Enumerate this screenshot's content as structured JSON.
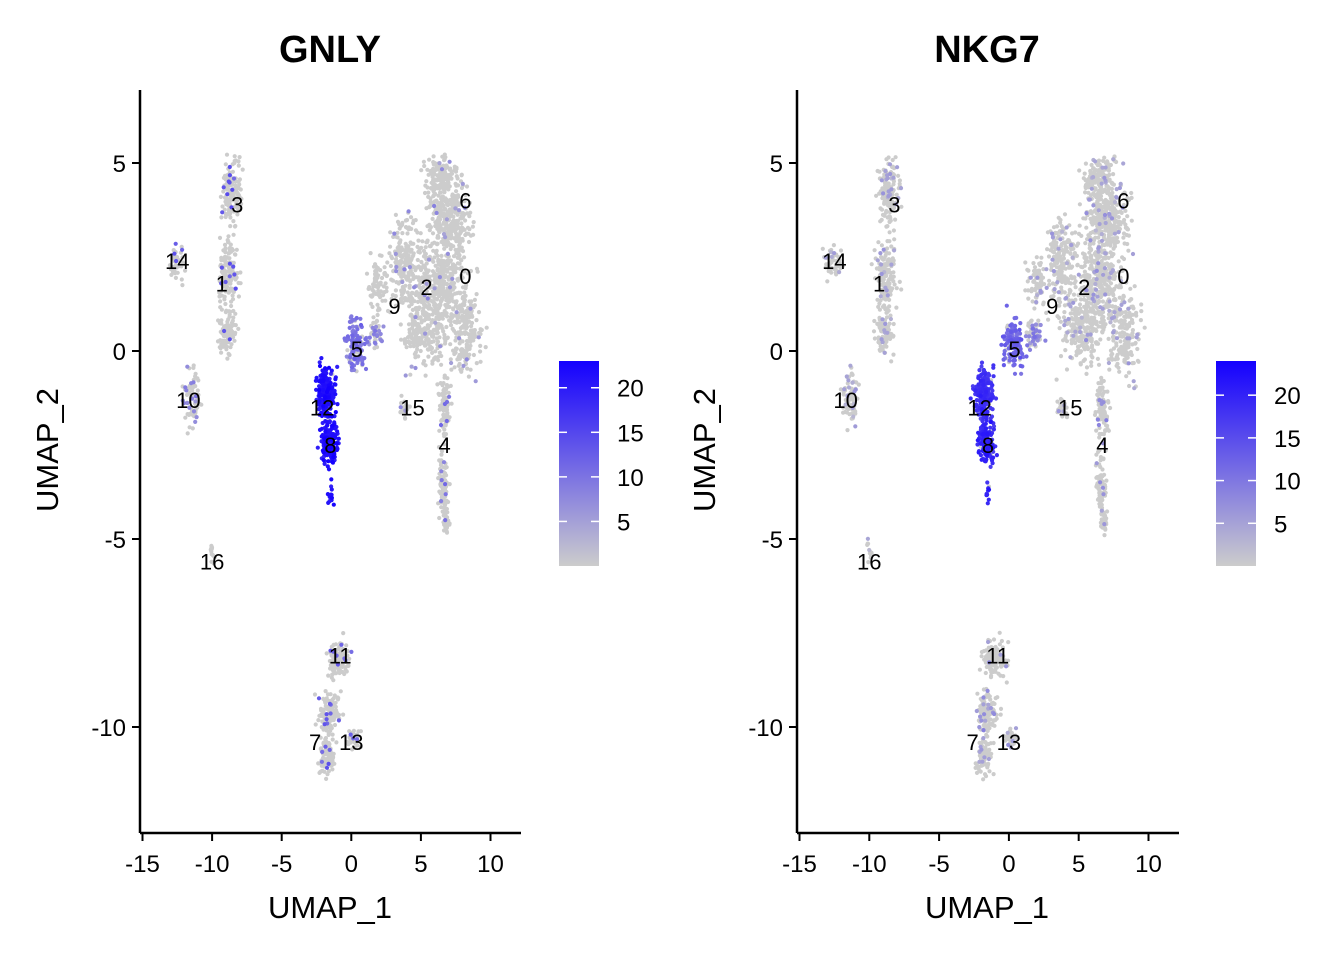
{
  "chart_data": [
    {
      "type": "scatter",
      "title": "GNLY",
      "xlabel": "UMAP_1",
      "ylabel": "UMAP_2",
      "xlim": [
        -15.5,
        12
      ],
      "ylim": [
        -13,
        6.8
      ],
      "xticks": [
        -15,
        -10,
        -5,
        0,
        5,
        10
      ],
      "yticks": [
        5,
        0,
        -5,
        -10
      ],
      "colorbar": {
        "ticks": [
          5,
          10,
          15,
          20
        ],
        "min": 0,
        "max": 23,
        "low_color": "#CCCCCC",
        "high_color": "#1400FF"
      },
      "clusters": [
        {
          "label": "0",
          "x": 8.2,
          "y": 2.0
        },
        {
          "label": "1",
          "x": -9.3,
          "y": 1.8
        },
        {
          "label": "2",
          "x": 5.4,
          "y": 1.7
        },
        {
          "label": "3",
          "x": -8.2,
          "y": 3.9
        },
        {
          "label": "4",
          "x": 6.7,
          "y": -2.5
        },
        {
          "label": "5",
          "x": 0.4,
          "y": 0.05
        },
        {
          "label": "6",
          "x": 8.2,
          "y": 4.0
        },
        {
          "label": "7",
          "x": -2.6,
          "y": -10.4
        },
        {
          "label": "8",
          "x": -1.5,
          "y": -2.5
        },
        {
          "label": "9",
          "x": 3.1,
          "y": 1.2
        },
        {
          "label": "10",
          "x": -11.7,
          "y": -1.3
        },
        {
          "label": "11",
          "x": -0.8,
          "y": -8.1
        },
        {
          "label": "12",
          "x": -2.1,
          "y": -1.5
        },
        {
          "label": "13",
          "x": 0.0,
          "y": -10.4
        },
        {
          "label": "14",
          "x": -12.5,
          "y": 2.4
        },
        {
          "label": "15",
          "x": 4.4,
          "y": -1.5
        },
        {
          "label": "16",
          "x": -10.0,
          "y": -5.6
        }
      ]
    },
    {
      "type": "scatter",
      "title": "NKG7",
      "xlabel": "UMAP_1",
      "ylabel": "UMAP_2",
      "xlim": [
        -15.5,
        12
      ],
      "ylim": [
        -13,
        6.8
      ],
      "xticks": [
        -15,
        -10,
        -5,
        0,
        5,
        10
      ],
      "yticks": [
        5,
        0,
        -5,
        -10
      ],
      "colorbar": {
        "ticks": [
          5,
          10,
          15,
          20
        ],
        "min": 0,
        "max": 24,
        "low_color": "#CCCCCC",
        "high_color": "#1400FF"
      },
      "clusters": [
        {
          "label": "0",
          "x": 8.2,
          "y": 2.0
        },
        {
          "label": "1",
          "x": -9.3,
          "y": 1.8
        },
        {
          "label": "2",
          "x": 5.4,
          "y": 1.7
        },
        {
          "label": "3",
          "x": -8.2,
          "y": 3.9
        },
        {
          "label": "4",
          "x": 6.7,
          "y": -2.5
        },
        {
          "label": "5",
          "x": 0.4,
          "y": 0.05
        },
        {
          "label": "6",
          "x": 8.2,
          "y": 4.0
        },
        {
          "label": "7",
          "x": -2.6,
          "y": -10.4
        },
        {
          "label": "8",
          "x": -1.5,
          "y": -2.5
        },
        {
          "label": "9",
          "x": 3.1,
          "y": 1.2
        },
        {
          "label": "10",
          "x": -11.7,
          "y": -1.3
        },
        {
          "label": "11",
          "x": -0.8,
          "y": -8.1
        },
        {
          "label": "12",
          "x": -2.1,
          "y": -1.5
        },
        {
          "label": "13",
          "x": 0.0,
          "y": -10.4
        },
        {
          "label": "14",
          "x": -12.5,
          "y": 2.4
        },
        {
          "label": "15",
          "x": 4.4,
          "y": -1.5
        },
        {
          "label": "16",
          "x": -10.0,
          "y": -5.6
        }
      ]
    }
  ]
}
